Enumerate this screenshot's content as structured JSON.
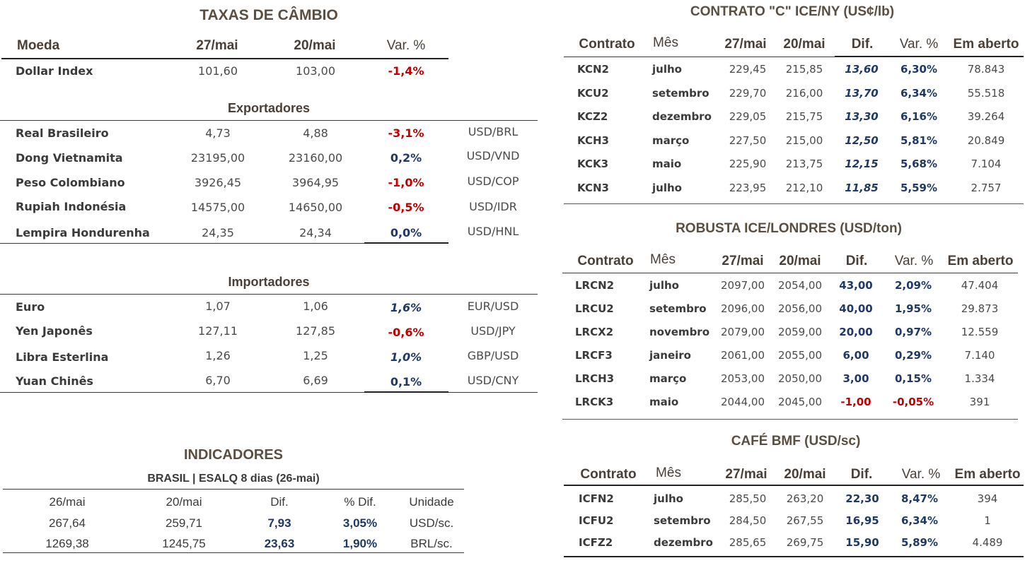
{
  "fx": {
    "title": "TAXAS DE CÂMBIO",
    "headers": [
      "Moeda",
      "27/mai",
      "20/mai",
      "Var. %"
    ],
    "dollar_index": {
      "name": "Dollar Index",
      "d1": "101,60",
      "d2": "103,00",
      "var": "-1,4%"
    },
    "exportadores_title": "Exportadores",
    "exportadores": [
      {
        "name": "Real Brasileiro",
        "d1": "4,73",
        "d2": "4,88",
        "var": "-3,1%",
        "pair": "USD/BRL"
      },
      {
        "name": "Dong Vietnamita",
        "d1": "23195,00",
        "d2": "23160,00",
        "var": "0,2%",
        "pair": "USD/VND"
      },
      {
        "name": "Peso Colombiano",
        "d1": "3926,45",
        "d2": "3964,95",
        "var": "-1,0%",
        "pair": "USD/COP"
      },
      {
        "name": "Rupiah Indonésia",
        "d1": "14575,00",
        "d2": "14650,00",
        "var": "-0,5%",
        "pair": "USD/IDR"
      },
      {
        "name": "Lempira Hondurenha",
        "d1": "24,35",
        "d2": "24,34",
        "var": "0,0%",
        "pair": "USD/HNL"
      }
    ],
    "importadores_title": "Importadores",
    "importadores": [
      {
        "name": "Euro",
        "d1": "1,07",
        "d2": "1,06",
        "var": "1,6%",
        "pair": "EUR/USD"
      },
      {
        "name": "Yen Japonês",
        "d1": "127,11",
        "d2": "127,85",
        "var": "-0,6%",
        "pair": "USD/JPY"
      },
      {
        "name": "Libra Esterlina",
        "d1": "1,26",
        "d2": "1,25",
        "var": "1,0%",
        "pair": "GBP/USD"
      },
      {
        "name": "Yuan Chinês",
        "d1": "6,70",
        "d2": "6,69",
        "var": "0,1%",
        "pair": "USD/CNY"
      }
    ]
  },
  "indicadores": {
    "title": "INDICADORES",
    "subtitle": "BRASIL | ESALQ 8 dias (26-mai)",
    "headers": [
      "26/mai",
      "20/mai",
      "Dif.",
      "% Dif.",
      "Unidade"
    ],
    "rows": [
      [
        "267,64",
        "259,71",
        "7,93",
        "3,05%",
        "USD/sc."
      ],
      [
        "1269,38",
        "1245,75",
        "23,63",
        "1,90%",
        "BRL/sc."
      ]
    ]
  },
  "arabica": {
    "title": "CONTRATO \"C\" ICE/NY (US¢/lb)",
    "headers": [
      "Contrato",
      "Mês",
      "27/mai",
      "20/mai",
      "Dif.",
      "Var. %",
      "Em aberto"
    ],
    "rows": [
      [
        "KCN2",
        "julho",
        "229,45",
        "215,85",
        "13,60",
        "6,30%",
        "78.843"
      ],
      [
        "KCU2",
        "setembro",
        "229,70",
        "216,00",
        "13,70",
        "6,34%",
        "55.518"
      ],
      [
        "KCZ2",
        "dezembro",
        "229,05",
        "215,75",
        "13,30",
        "6,16%",
        "39.264"
      ],
      [
        "KCH3",
        "março",
        "227,50",
        "215,00",
        "12,50",
        "5,81%",
        "20.849"
      ],
      [
        "KCK3",
        "maio",
        "225,90",
        "213,75",
        "12,15",
        "5,68%",
        "7.104"
      ],
      [
        "KCN3",
        "julho",
        "223,95",
        "212,10",
        "11,85",
        "5,59%",
        "2.757"
      ]
    ]
  },
  "robusta": {
    "title": "ROBUSTA ICE/LONDRES (USD/ton)",
    "headers": [
      "Contrato",
      "Mês",
      "27/mai",
      "20/mai",
      "Dif.",
      "Var. %",
      "Em aberto"
    ],
    "rows": [
      [
        "LRCN2",
        "julho",
        "2097,00",
        "2054,00",
        "43,00",
        "2,09%",
        "47.404"
      ],
      [
        "LRCU2",
        "setembro",
        "2096,00",
        "2056,00",
        "40,00",
        "1,95%",
        "29.873"
      ],
      [
        "LRCX2",
        "novembro",
        "2079,00",
        "2059,00",
        "20,00",
        "0,97%",
        "12.559"
      ],
      [
        "LRCF3",
        "janeiro",
        "2061,00",
        "2055,00",
        "6,00",
        "0,29%",
        "7.140"
      ],
      [
        "LRCH3",
        "março",
        "2053,00",
        "2050,00",
        "3,00",
        "0,15%",
        "1.334"
      ],
      [
        "LRCK3",
        "maio",
        "2044,00",
        "2045,00",
        "-1,00",
        "-0,05%",
        "391"
      ]
    ]
  },
  "bmf": {
    "title": "CAFÉ BMF (USD/sc)",
    "headers": [
      "Contrato",
      "Mês",
      "27/mai",
      "20/mai",
      "Dif.",
      "Var. %",
      "Em aberto"
    ],
    "rows": [
      [
        "ICFN2",
        "julho",
        "285,50",
        "263,20",
        "22,30",
        "8,47%",
        "394"
      ],
      [
        "ICFU2",
        "setembro",
        "284,50",
        "267,55",
        "16,95",
        "6,34%",
        "1"
      ],
      [
        "ICFZ2",
        "dezembro",
        "285,65",
        "269,75",
        "15,90",
        "5,89%",
        "4.489"
      ]
    ]
  },
  "colors": {
    "negative": "#c00000",
    "positive": "#1f3864",
    "title": "#5a4e42"
  }
}
